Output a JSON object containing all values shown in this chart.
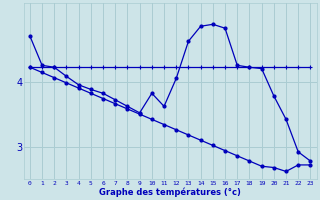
{
  "xlabel": "Graphe des températures (°c)",
  "xlim": [
    -0.5,
    23.5
  ],
  "ylim": [
    2.5,
    5.2
  ],
  "yticks": [
    3,
    4
  ],
  "bg_color": "#cde4e8",
  "grid_color": "#aaccd2",
  "line_color": "#0000bb",
  "x": [
    0,
    1,
    2,
    3,
    4,
    5,
    6,
    7,
    8,
    9,
    10,
    11,
    12,
    13,
    14,
    15,
    16,
    17,
    18,
    19,
    20,
    21,
    22,
    23
  ],
  "series1": [
    4.7,
    4.25,
    4.22,
    4.08,
    3.95,
    3.88,
    3.82,
    3.72,
    3.62,
    3.52,
    3.82,
    3.62,
    4.05,
    4.62,
    4.85,
    4.88,
    4.82,
    4.25,
    4.22,
    4.2,
    3.78,
    3.42,
    2.92,
    2.78
  ],
  "series2": [
    4.22,
    4.22,
    4.22,
    4.22,
    4.22,
    4.22,
    4.22,
    4.22,
    4.22,
    4.22,
    4.22,
    4.22,
    4.22,
    4.22,
    4.22,
    4.22,
    4.22,
    4.22,
    4.22,
    4.22,
    4.22,
    4.22,
    4.22,
    4.22
  ],
  "series3": [
    4.22,
    4.14,
    4.06,
    3.98,
    3.9,
    3.82,
    3.74,
    3.66,
    3.58,
    3.5,
    3.42,
    3.34,
    3.26,
    3.18,
    3.1,
    3.02,
    2.94,
    2.86,
    2.78,
    2.7,
    2.68,
    2.62,
    2.72,
    2.72
  ]
}
